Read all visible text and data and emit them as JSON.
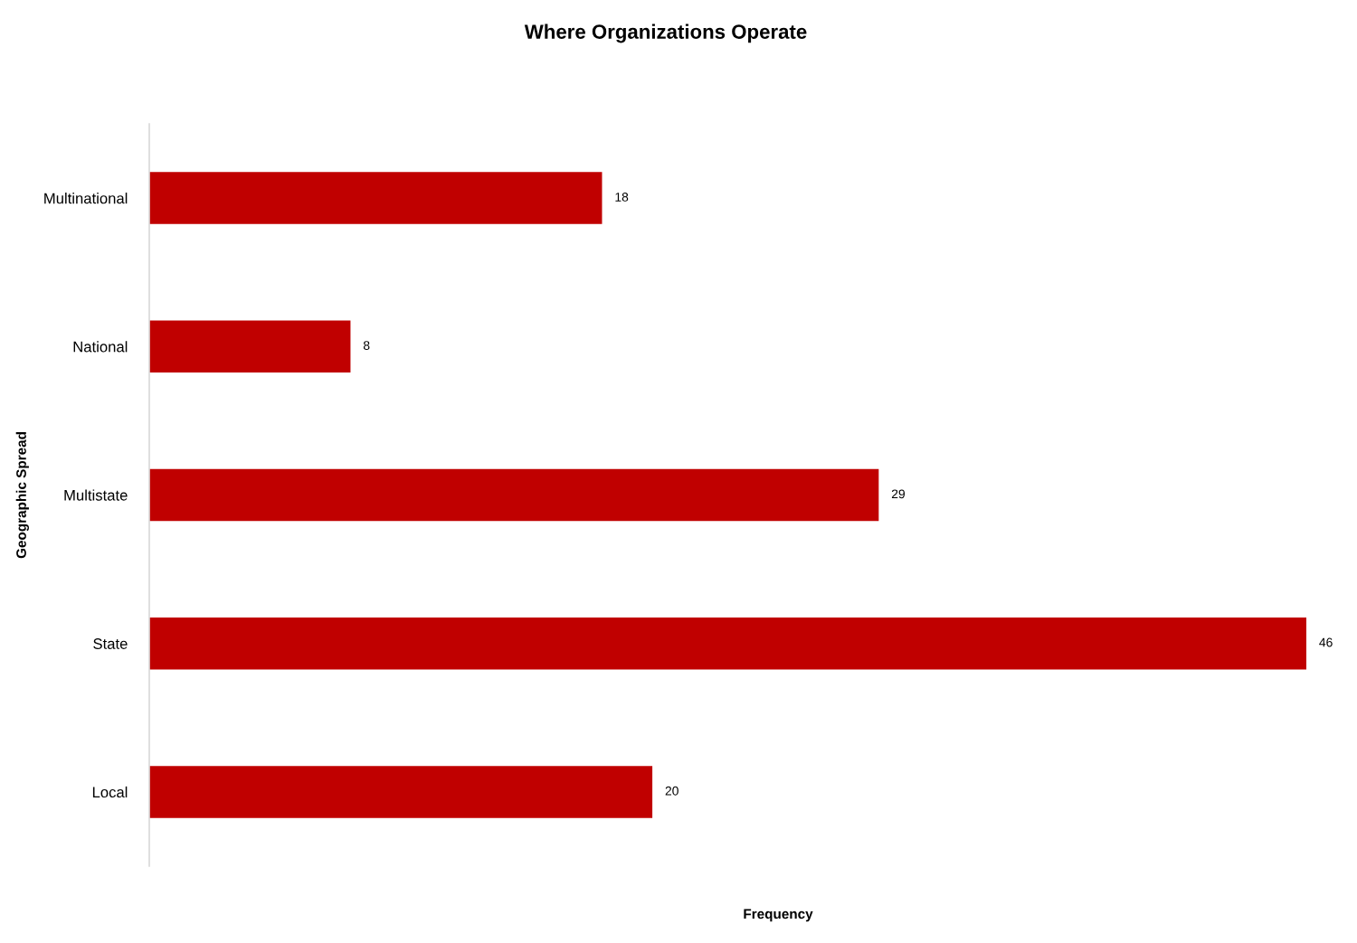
{
  "chart_data": {
    "type": "bar",
    "orientation": "horizontal",
    "title": "Where Organizations Operate",
    "xlabel": "Frequency",
    "ylabel": "Geographic Spread",
    "categories": [
      "Multinational",
      "National",
      "Multistate",
      "State",
      "Local"
    ],
    "values": [
      18,
      8,
      29,
      46,
      20
    ],
    "color": "#c00000",
    "xlim": [
      0,
      46
    ],
    "data_labels": true,
    "tick_labels": "y"
  }
}
